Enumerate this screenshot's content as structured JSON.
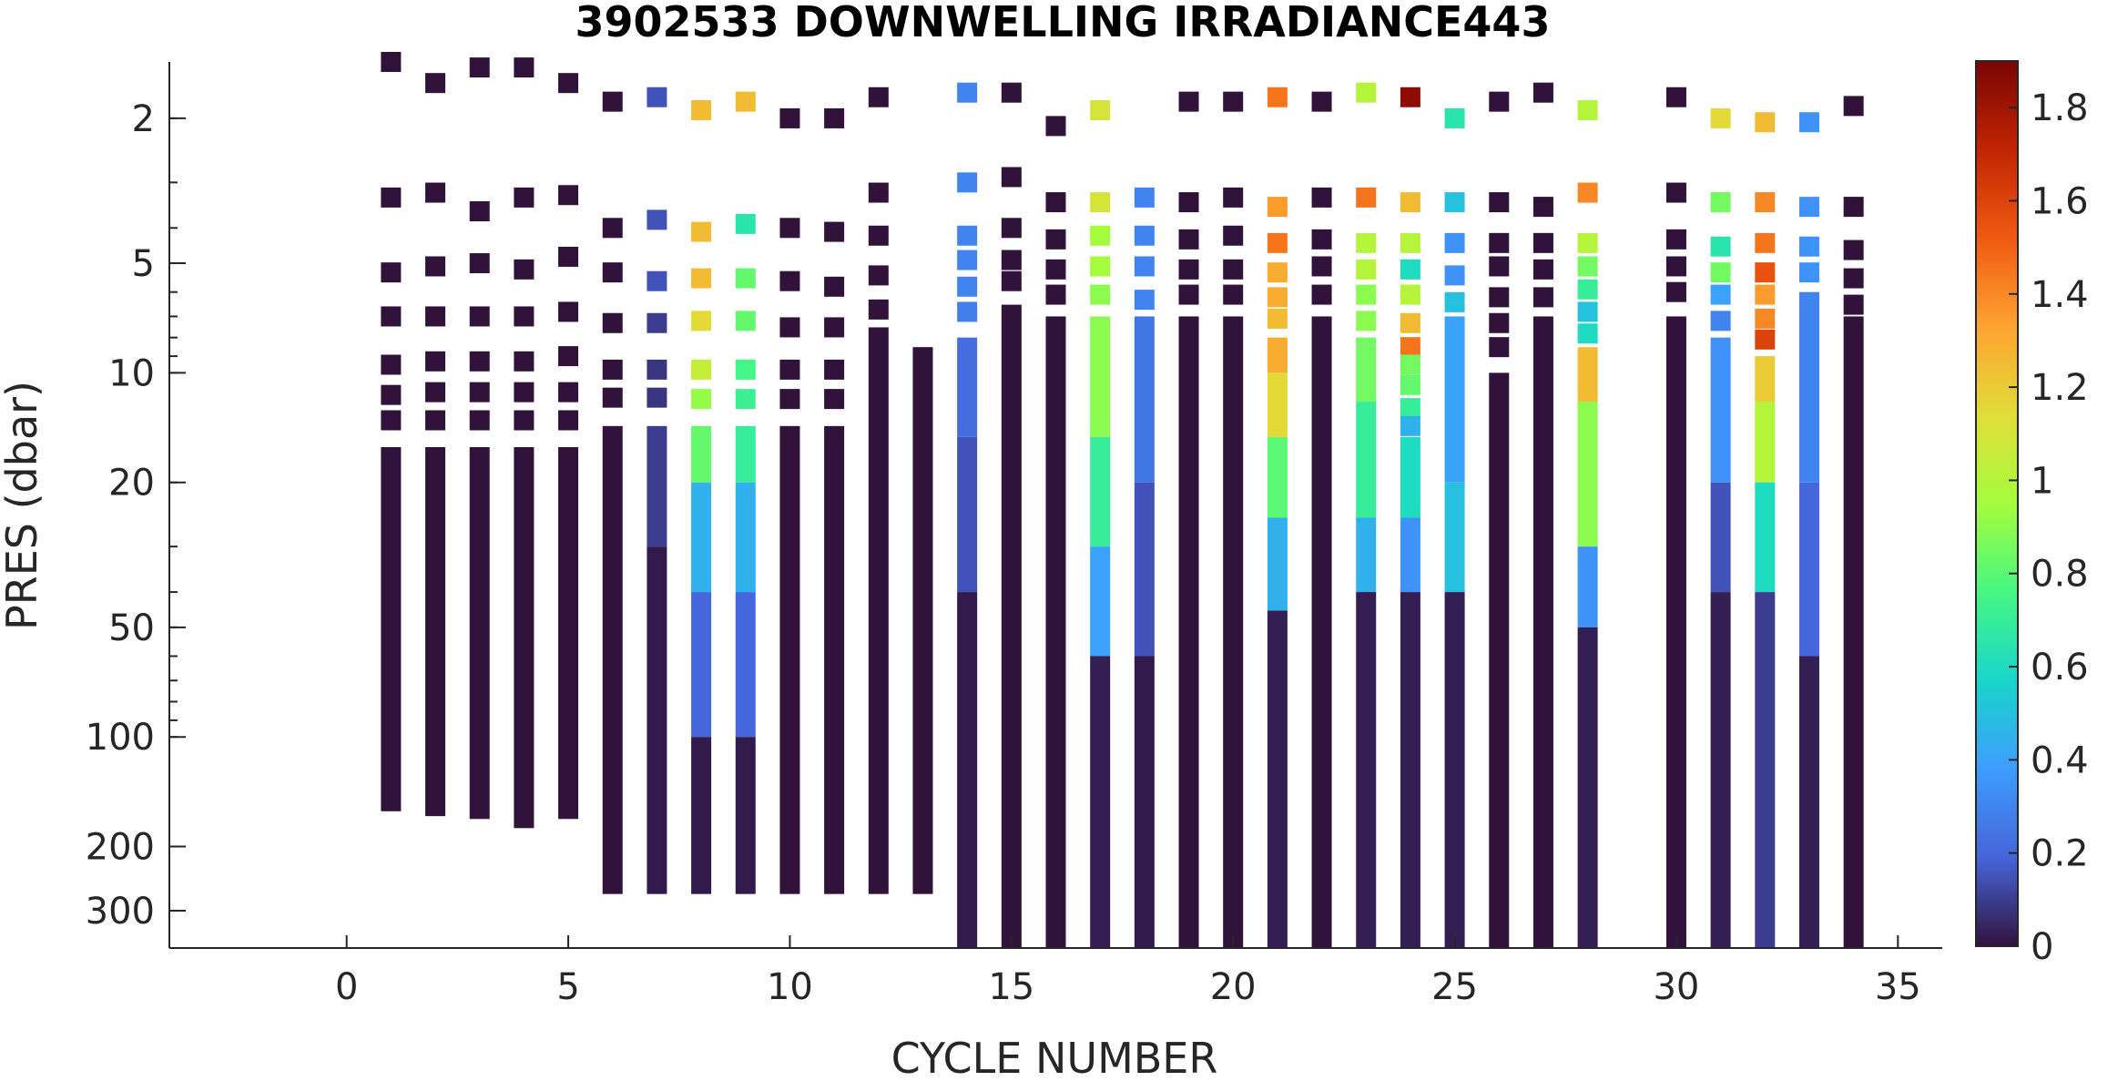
{
  "chart_data": {
    "type": "heatmap",
    "title": "3902533  DOWNWELLING IRRADIANCE443",
    "xlabel": "CYCLE NUMBER",
    "ylabel": "PRES (dbar)",
    "xlim": [
      -4,
      36
    ],
    "ylim": [
      1.4,
      380
    ],
    "y_scale": "log",
    "y_reversed": true,
    "grid": false,
    "x_ticks": [
      0,
      5,
      10,
      15,
      20,
      25,
      30,
      35
    ],
    "y_ticks": [
      2,
      5,
      10,
      20,
      50,
      100,
      200,
      300
    ],
    "colorbar": {
      "range": [
        0,
        1.9
      ],
      "ticks": [
        0,
        0.2,
        0.4,
        0.6,
        0.8,
        1,
        1.2,
        1.4,
        1.6,
        1.8
      ],
      "colormap": "turbo"
    },
    "series": [
      {
        "cycle": 1,
        "samples": [
          [
            1.3,
            0
          ],
          [
            3.3,
            0
          ],
          [
            5.3,
            0
          ],
          [
            7,
            0
          ],
          [
            9.5,
            0
          ],
          [
            11.5,
            0
          ],
          [
            13.5,
            0
          ]
        ],
        "continuous": [
          [
            16,
            160,
            0
          ]
        ]
      },
      {
        "cycle": 2,
        "samples": [
          [
            1.6,
            0
          ],
          [
            3.2,
            0
          ],
          [
            5.1,
            0
          ],
          [
            7,
            0
          ],
          [
            9.3,
            0
          ],
          [
            11.3,
            0
          ],
          [
            13.5,
            0
          ]
        ],
        "continuous": [
          [
            16,
            165,
            0
          ]
        ]
      },
      {
        "cycle": 3,
        "samples": [
          [
            1.45,
            0
          ],
          [
            3.6,
            0
          ],
          [
            5,
            0
          ],
          [
            7,
            0
          ],
          [
            9.3,
            0
          ],
          [
            11.3,
            0
          ],
          [
            13.5,
            0
          ]
        ],
        "continuous": [
          [
            16,
            168,
            0
          ]
        ]
      },
      {
        "cycle": 4,
        "samples": [
          [
            1.45,
            0
          ],
          [
            3.3,
            0
          ],
          [
            5.2,
            0
          ],
          [
            7,
            0
          ],
          [
            9.3,
            0
          ],
          [
            11.3,
            0
          ],
          [
            13.5,
            0
          ]
        ],
        "continuous": [
          [
            16,
            178,
            0
          ]
        ]
      },
      {
        "cycle": 5,
        "samples": [
          [
            1.6,
            0
          ],
          [
            3.25,
            0
          ],
          [
            4.8,
            0
          ],
          [
            6.8,
            0
          ],
          [
            9,
            0
          ],
          [
            11.3,
            0
          ],
          [
            13.5,
            0
          ]
        ],
        "continuous": [
          [
            16,
            168,
            0
          ]
        ]
      },
      {
        "cycle": 6,
        "samples": [
          [
            1.8,
            0
          ],
          [
            4,
            0
          ],
          [
            5.3,
            0
          ],
          [
            7.3,
            0
          ],
          [
            9.8,
            0
          ],
          [
            11.7,
            0
          ]
        ],
        "continuous": [
          [
            14,
            270,
            0
          ]
        ]
      },
      {
        "cycle": 7,
        "samples": [
          [
            1.75,
            0.15
          ],
          [
            3.8,
            0.15
          ],
          [
            5.6,
            0.15
          ],
          [
            7.3,
            0.1
          ],
          [
            9.8,
            0.08
          ],
          [
            11.7,
            0.08
          ]
        ],
        "continuous": [
          [
            14,
            30,
            0.1
          ],
          [
            30,
            270,
            0.02
          ]
        ]
      },
      {
        "cycle": 8,
        "samples": [
          [
            1.9,
            1.25
          ],
          [
            4.1,
            1.25
          ],
          [
            5.5,
            1.25
          ],
          [
            7.2,
            1.15
          ],
          [
            9.8,
            1.05
          ],
          [
            11.8,
            0.92
          ]
        ],
        "continuous": [
          [
            14,
            20,
            0.82
          ],
          [
            20,
            40,
            0.45
          ],
          [
            40,
            100,
            0.2
          ],
          [
            100,
            270,
            0.02
          ]
        ]
      },
      {
        "cycle": 9,
        "samples": [
          [
            1.8,
            1.25
          ],
          [
            3.9,
            0.65
          ],
          [
            5.5,
            0.82
          ],
          [
            7.2,
            0.82
          ],
          [
            9.8,
            0.75
          ],
          [
            11.8,
            0.72
          ]
        ],
        "continuous": [
          [
            14,
            20,
            0.7
          ],
          [
            20,
            40,
            0.45
          ],
          [
            40,
            100,
            0.2
          ],
          [
            100,
            270,
            0.02
          ]
        ]
      },
      {
        "cycle": 10,
        "samples": [
          [
            2,
            0
          ],
          [
            4,
            0
          ],
          [
            5.6,
            0
          ],
          [
            7.5,
            0
          ],
          [
            9.8,
            0
          ],
          [
            11.8,
            0
          ]
        ],
        "continuous": [
          [
            14,
            270,
            0
          ]
        ]
      },
      {
        "cycle": 11,
        "samples": [
          [
            2,
            0
          ],
          [
            4.1,
            0
          ],
          [
            5.8,
            0
          ],
          [
            7.5,
            0
          ],
          [
            9.8,
            0
          ],
          [
            11.8,
            0
          ]
        ],
        "continuous": [
          [
            14,
            270,
            0
          ]
        ]
      },
      {
        "cycle": 12,
        "samples": [
          [
            1.75,
            0
          ],
          [
            3.2,
            0
          ],
          [
            4.2,
            0
          ],
          [
            5.4,
            0
          ],
          [
            6.7,
            0
          ]
        ],
        "continuous": [
          [
            7.5,
            270,
            0
          ]
        ]
      },
      {
        "cycle": 13,
        "samples": [],
        "continuous": [
          [
            8.5,
            270,
            0
          ]
        ]
      },
      {
        "cycle": 14,
        "samples": [
          [
            1.7,
            0.3
          ],
          [
            3,
            0.3
          ],
          [
            4.2,
            0.3
          ],
          [
            4.9,
            0.3
          ],
          [
            5.8,
            0.3
          ],
          [
            6.8,
            0.28
          ]
        ],
        "continuous": [
          [
            8,
            15,
            0.22
          ],
          [
            15,
            40,
            0.15
          ],
          [
            40,
            400,
            0.02
          ]
        ]
      },
      {
        "cycle": 15,
        "samples": [
          [
            1.7,
            0
          ],
          [
            2.9,
            0
          ],
          [
            4,
            0
          ],
          [
            4.9,
            0
          ],
          [
            5.6,
            0
          ]
        ],
        "continuous": [
          [
            6.5,
            400,
            0
          ]
        ]
      },
      {
        "cycle": 16,
        "samples": [
          [
            2.1,
            0
          ],
          [
            3.4,
            0
          ],
          [
            4.3,
            0
          ],
          [
            5.2,
            0
          ],
          [
            6.1,
            0
          ]
        ],
        "continuous": [
          [
            7,
            400,
            0
          ]
        ]
      },
      {
        "cycle": 17,
        "samples": [
          [
            1.9,
            1.1
          ],
          [
            3.4,
            1.1
          ],
          [
            4.2,
            0.95
          ],
          [
            5.1,
            0.95
          ],
          [
            6.1,
            0.9
          ]
        ],
        "continuous": [
          [
            7,
            15,
            0.9
          ],
          [
            15,
            30,
            0.7
          ],
          [
            30,
            60,
            0.4
          ],
          [
            60,
            400,
            0.03
          ]
        ]
      },
      {
        "cycle": 18,
        "samples": [
          [
            3.3,
            0.3
          ],
          [
            4.2,
            0.3
          ],
          [
            5.1,
            0.3
          ],
          [
            6.3,
            0.3
          ]
        ],
        "continuous": [
          [
            7,
            20,
            0.25
          ],
          [
            20,
            60,
            0.15
          ],
          [
            60,
            400,
            0.02
          ]
        ]
      },
      {
        "cycle": 19,
        "samples": [
          [
            1.8,
            0
          ],
          [
            3.4,
            0
          ],
          [
            4.3,
            0
          ],
          [
            5.2,
            0
          ],
          [
            6.1,
            0
          ]
        ],
        "continuous": [
          [
            7,
            400,
            0
          ]
        ]
      },
      {
        "cycle": 20,
        "samples": [
          [
            1.8,
            0
          ],
          [
            3.3,
            0
          ],
          [
            4.2,
            0
          ],
          [
            5.2,
            0
          ],
          [
            6.1,
            0
          ]
        ],
        "continuous": [
          [
            7,
            400,
            0
          ]
        ]
      },
      {
        "cycle": 21,
        "samples": [
          [
            1.75,
            1.45
          ],
          [
            3.5,
            1.35
          ],
          [
            4.4,
            1.45
          ],
          [
            5.3,
            1.3
          ],
          [
            6.2,
            1.3
          ],
          [
            7.1,
            1.25
          ]
        ],
        "continuous": [
          [
            8,
            10,
            1.3
          ],
          [
            10,
            15,
            1.15
          ],
          [
            15,
            25,
            0.8
          ],
          [
            25,
            45,
            0.45
          ],
          [
            45,
            400,
            0.03
          ]
        ]
      },
      {
        "cycle": 22,
        "samples": [
          [
            1.8,
            0
          ],
          [
            3.3,
            0
          ],
          [
            4.3,
            0
          ],
          [
            5.1,
            0
          ],
          [
            6.1,
            0
          ]
        ],
        "continuous": [
          [
            7,
            400,
            0
          ]
        ]
      },
      {
        "cycle": 23,
        "samples": [
          [
            1.7,
            1
          ],
          [
            3.3,
            1.45
          ],
          [
            4.4,
            1
          ],
          [
            5.2,
            1
          ],
          [
            6.1,
            0.9
          ],
          [
            7.2,
            0.9
          ]
        ],
        "continuous": [
          [
            8,
            12,
            0.85
          ],
          [
            12,
            25,
            0.7
          ],
          [
            25,
            40,
            0.45
          ],
          [
            40,
            400,
            0.03
          ]
        ]
      },
      {
        "cycle": 24,
        "samples": [
          [
            1.75,
            1.85
          ],
          [
            3.4,
            1.25
          ],
          [
            4.4,
            1
          ],
          [
            5.2,
            0.6
          ],
          [
            6.1,
            1
          ],
          [
            7.3,
            1.25
          ],
          [
            8.5,
            1.45
          ],
          [
            9.5,
            0.85
          ],
          [
            10.8,
            0.82
          ],
          [
            12.5,
            0.7
          ],
          [
            14,
            0.45
          ]
        ],
        "continuous": [
          [
            15,
            25,
            0.6
          ],
          [
            25,
            40,
            0.35
          ],
          [
            40,
            400,
            0.03
          ]
        ]
      },
      {
        "cycle": 25,
        "samples": [
          [
            2,
            0.65
          ],
          [
            3.4,
            0.5
          ],
          [
            4.4,
            0.35
          ],
          [
            5.4,
            0.35
          ],
          [
            6.4,
            0.5
          ]
        ],
        "continuous": [
          [
            7,
            20,
            0.4
          ],
          [
            20,
            40,
            0.5
          ],
          [
            40,
            400,
            0.03
          ]
        ]
      },
      {
        "cycle": 26,
        "samples": [
          [
            1.8,
            0
          ],
          [
            3.4,
            0
          ],
          [
            4.4,
            0
          ],
          [
            5.1,
            0
          ],
          [
            6.2,
            0
          ],
          [
            7.3,
            0
          ],
          [
            8.5,
            0
          ]
        ],
        "continuous": [
          [
            10,
            400,
            0
          ]
        ]
      },
      {
        "cycle": 27,
        "samples": [
          [
            1.7,
            0
          ],
          [
            3.5,
            0
          ],
          [
            4.4,
            0
          ],
          [
            5.2,
            0
          ],
          [
            6.2,
            0
          ]
        ],
        "continuous": [
          [
            7,
            400,
            0
          ]
        ]
      },
      {
        "cycle": 28,
        "samples": [
          [
            1.9,
            1
          ],
          [
            3.2,
            1.4
          ],
          [
            4.4,
            1
          ],
          [
            5.1,
            0.85
          ],
          [
            5.9,
            0.7
          ],
          [
            6.8,
            0.5
          ],
          [
            7.8,
            0.6
          ]
        ],
        "continuous": [
          [
            8.5,
            12,
            1.25
          ],
          [
            12,
            30,
            0.9
          ],
          [
            30,
            50,
            0.35
          ],
          [
            50,
            400,
            0.03
          ]
        ]
      },
      {
        "cycle": 30,
        "samples": [
          [
            1.75,
            0
          ],
          [
            3.2,
            0
          ],
          [
            4.3,
            0
          ],
          [
            5.1,
            0
          ],
          [
            6,
            0
          ]
        ],
        "continuous": [
          [
            7,
            400,
            0
          ]
        ]
      },
      {
        "cycle": 31,
        "samples": [
          [
            2,
            1.15
          ],
          [
            3.4,
            0.85
          ],
          [
            4.5,
            0.65
          ],
          [
            5.3,
            0.85
          ],
          [
            6.1,
            0.4
          ],
          [
            7.2,
            0.3
          ]
        ],
        "continuous": [
          [
            8,
            20,
            0.35
          ],
          [
            20,
            40,
            0.15
          ],
          [
            40,
            400,
            0.03
          ]
        ]
      },
      {
        "cycle": 32,
        "samples": [
          [
            2.05,
            1.25
          ],
          [
            3.4,
            1.4
          ],
          [
            4.4,
            1.45
          ],
          [
            5.3,
            1.55
          ],
          [
            6.1,
            1.35
          ],
          [
            7.1,
            1.4
          ],
          [
            8.1,
            1.6
          ]
        ],
        "continuous": [
          [
            9,
            12,
            1.2
          ],
          [
            12,
            20,
            1
          ],
          [
            20,
            40,
            0.6
          ],
          [
            40,
            400,
            0.1
          ]
        ]
      },
      {
        "cycle": 33,
        "samples": [
          [
            2.05,
            0.35
          ],
          [
            3.5,
            0.35
          ],
          [
            4.5,
            0.35
          ],
          [
            5.3,
            0.35
          ]
        ],
        "continuous": [
          [
            6,
            20,
            0.3
          ],
          [
            20,
            60,
            0.2
          ],
          [
            60,
            400,
            0.03
          ]
        ]
      },
      {
        "cycle": 34,
        "samples": [
          [
            1.85,
            0
          ],
          [
            3.5,
            0
          ],
          [
            4.6,
            0
          ],
          [
            5.5,
            0
          ],
          [
            6.5,
            0
          ]
        ],
        "continuous": [
          [
            7,
            400,
            0
          ]
        ]
      }
    ]
  }
}
